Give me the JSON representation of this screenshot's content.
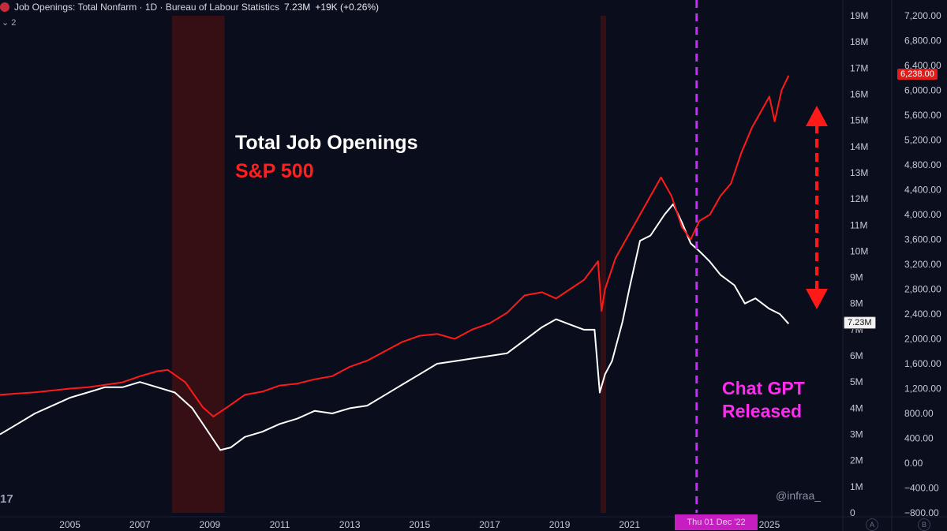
{
  "header": {
    "title": "Job Openings: Total Nonfarm · 1D · Bureau of Labour Statistics",
    "value": "7.23M",
    "change": "+19K (+0.26%)",
    "sub_icon": "chevron-down-icon",
    "sub_count": "2"
  },
  "legend": {
    "jobs": "Total Job Openings",
    "spx": "S&P 500"
  },
  "annotation": {
    "line1": "Chat GPT",
    "line2": "Released"
  },
  "watermark": "@infraa_",
  "logo_text": "17",
  "price_tags": {
    "spx": "6,238.00",
    "jobs": "7.23M"
  },
  "date_tag": "Thu 01 Dec '22",
  "axis_buttons": {
    "a": "A",
    "b": "B"
  },
  "colors": {
    "background": "#0a0d1c",
    "jobs_line": "#ffffff",
    "spx_line": "#ff1a1a",
    "recession": "#3b0f14",
    "chatgpt": "#c82bff",
    "arrow": "#ff1a1a"
  },
  "chart_data": {
    "type": "line",
    "title": "",
    "x_ticks": [
      "2005",
      "2007",
      "2009",
      "2011",
      "2013",
      "2015",
      "2017",
      "2019",
      "2021",
      "2025"
    ],
    "xlim": [
      2003.0,
      2027.1
    ],
    "y_left_ticks": [
      "19M",
      "18M",
      "17M",
      "16M",
      "15M",
      "14M",
      "13M",
      "12M",
      "11M",
      "10M",
      "9M",
      "8M",
      "7M",
      "6M",
      "5M",
      "4M",
      "3M",
      "2M",
      "1M",
      "0"
    ],
    "ylim_left": [
      0,
      19000000
    ],
    "y_right_ticks": [
      "7,200.00",
      "6,800.00",
      "6,400.00",
      "6,000.00",
      "5,600.00",
      "5,200.00",
      "4,800.00",
      "4,400.00",
      "4,000.00",
      "3,600.00",
      "3,200.00",
      "2,800.00",
      "2,400.00",
      "2,000.00",
      "1,600.00",
      "1,200.00",
      "800.00",
      "400.00",
      "0.00",
      "−400.00",
      "−800.00"
    ],
    "ylim_right": [
      -800,
      7200
    ],
    "recessions": [
      [
        2007.92,
        2009.42
      ],
      [
        2020.17,
        2020.33
      ]
    ],
    "chatgpt_release": 2022.92,
    "series": [
      {
        "name": "Total Job Openings",
        "axis": "left",
        "x": [
          2003.0,
          2003.5,
          2004.0,
          2004.5,
          2005.0,
          2005.5,
          2006.0,
          2006.5,
          2007.0,
          2007.5,
          2008.0,
          2008.5,
          2009.0,
          2009.3,
          2009.6,
          2010.0,
          2010.5,
          2011.0,
          2011.5,
          2012.0,
          2012.5,
          2013.0,
          2013.5,
          2014.0,
          2014.5,
          2015.0,
          2015.5,
          2016.0,
          2016.5,
          2017.0,
          2017.5,
          2018.0,
          2018.5,
          2018.9,
          2019.3,
          2019.7,
          2020.0,
          2020.15,
          2020.3,
          2020.5,
          2020.8,
          2021.0,
          2021.3,
          2021.6,
          2022.0,
          2022.25,
          2022.5,
          2022.75,
          2023.0,
          2023.3,
          2023.6,
          2024.0,
          2024.3,
          2024.6,
          2025.0,
          2025.3,
          2025.55
        ],
        "y": [
          3.0,
          3.4,
          3.8,
          4.1,
          4.4,
          4.6,
          4.8,
          4.8,
          5.0,
          4.8,
          4.6,
          4.0,
          3.0,
          2.4,
          2.5,
          2.9,
          3.1,
          3.4,
          3.6,
          3.9,
          3.8,
          4.0,
          4.1,
          4.5,
          4.9,
          5.3,
          5.7,
          5.8,
          5.9,
          6.0,
          6.1,
          6.6,
          7.1,
          7.4,
          7.2,
          7.0,
          7.0,
          4.6,
          5.3,
          5.8,
          7.3,
          8.6,
          10.4,
          10.6,
          11.4,
          11.8,
          11.1,
          10.3,
          10.0,
          9.6,
          9.1,
          8.7,
          8.0,
          8.2,
          7.8,
          7.6,
          7.23
        ],
        "color": "#ffffff"
      },
      {
        "name": "S&P 500",
        "axis": "right",
        "x": [
          2003.0,
          2003.5,
          2004.0,
          2004.5,
          2005.0,
          2005.5,
          2006.0,
          2006.5,
          2007.0,
          2007.5,
          2007.8,
          2008.3,
          2008.8,
          2009.1,
          2009.5,
          2010.0,
          2010.5,
          2011.0,
          2011.5,
          2012.0,
          2012.5,
          2013.0,
          2013.5,
          2014.0,
          2014.5,
          2015.0,
          2015.5,
          2016.0,
          2016.5,
          2017.0,
          2017.5,
          2018.0,
          2018.5,
          2018.9,
          2019.3,
          2019.7,
          2020.1,
          2020.2,
          2020.3,
          2020.6,
          2021.0,
          2021.3,
          2021.6,
          2021.9,
          2022.2,
          2022.5,
          2022.75,
          2023.0,
          2023.3,
          2023.6,
          2023.9,
          2024.2,
          2024.5,
          2024.8,
          2025.0,
          2025.15,
          2025.35,
          2025.55
        ],
        "y": [
          1100,
          1120,
          1140,
          1170,
          1200,
          1220,
          1260,
          1300,
          1400,
          1480,
          1500,
          1300,
          900,
          750,
          900,
          1100,
          1150,
          1250,
          1280,
          1350,
          1400,
          1550,
          1650,
          1800,
          1950,
          2050,
          2080,
          2000,
          2150,
          2250,
          2420,
          2700,
          2750,
          2650,
          2800,
          2950,
          3250,
          2450,
          2800,
          3300,
          3700,
          4000,
          4300,
          4600,
          4300,
          3800,
          3600,
          3900,
          4000,
          4300,
          4500,
          5000,
          5400,
          5700,
          5900,
          5500,
          6000,
          6238
        ],
        "color": "#ff1a1a"
      }
    ]
  }
}
